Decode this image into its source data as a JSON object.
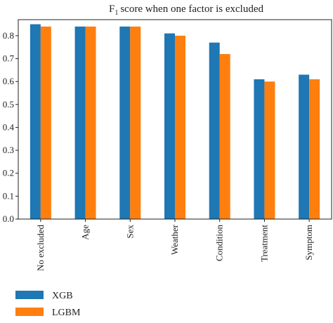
{
  "chart_data": {
    "type": "bar",
    "title": "score when one factor is excluded",
    "title_symbol": "F",
    "title_subscript": "1",
    "xlabel": "",
    "ylabel": "",
    "categories": [
      "No excluded",
      "Age",
      "Sex",
      "Weather",
      "Condition",
      "Treatment",
      "Symptom"
    ],
    "series": [
      {
        "name": "XGB",
        "color": "#1f77b4",
        "values": [
          0.85,
          0.84,
          0.84,
          0.81,
          0.77,
          0.61,
          0.63
        ]
      },
      {
        "name": "LGBM",
        "color": "#ff7f0e",
        "values": [
          0.84,
          0.84,
          0.84,
          0.8,
          0.72,
          0.6,
          0.61
        ]
      }
    ],
    "ylim": [
      0,
      0.87
    ],
    "yticks": [
      0.0,
      0.1,
      0.2,
      0.3,
      0.4,
      0.5,
      0.6,
      0.7,
      0.8
    ],
    "grid": false,
    "legend_position": "bottom-left"
  }
}
